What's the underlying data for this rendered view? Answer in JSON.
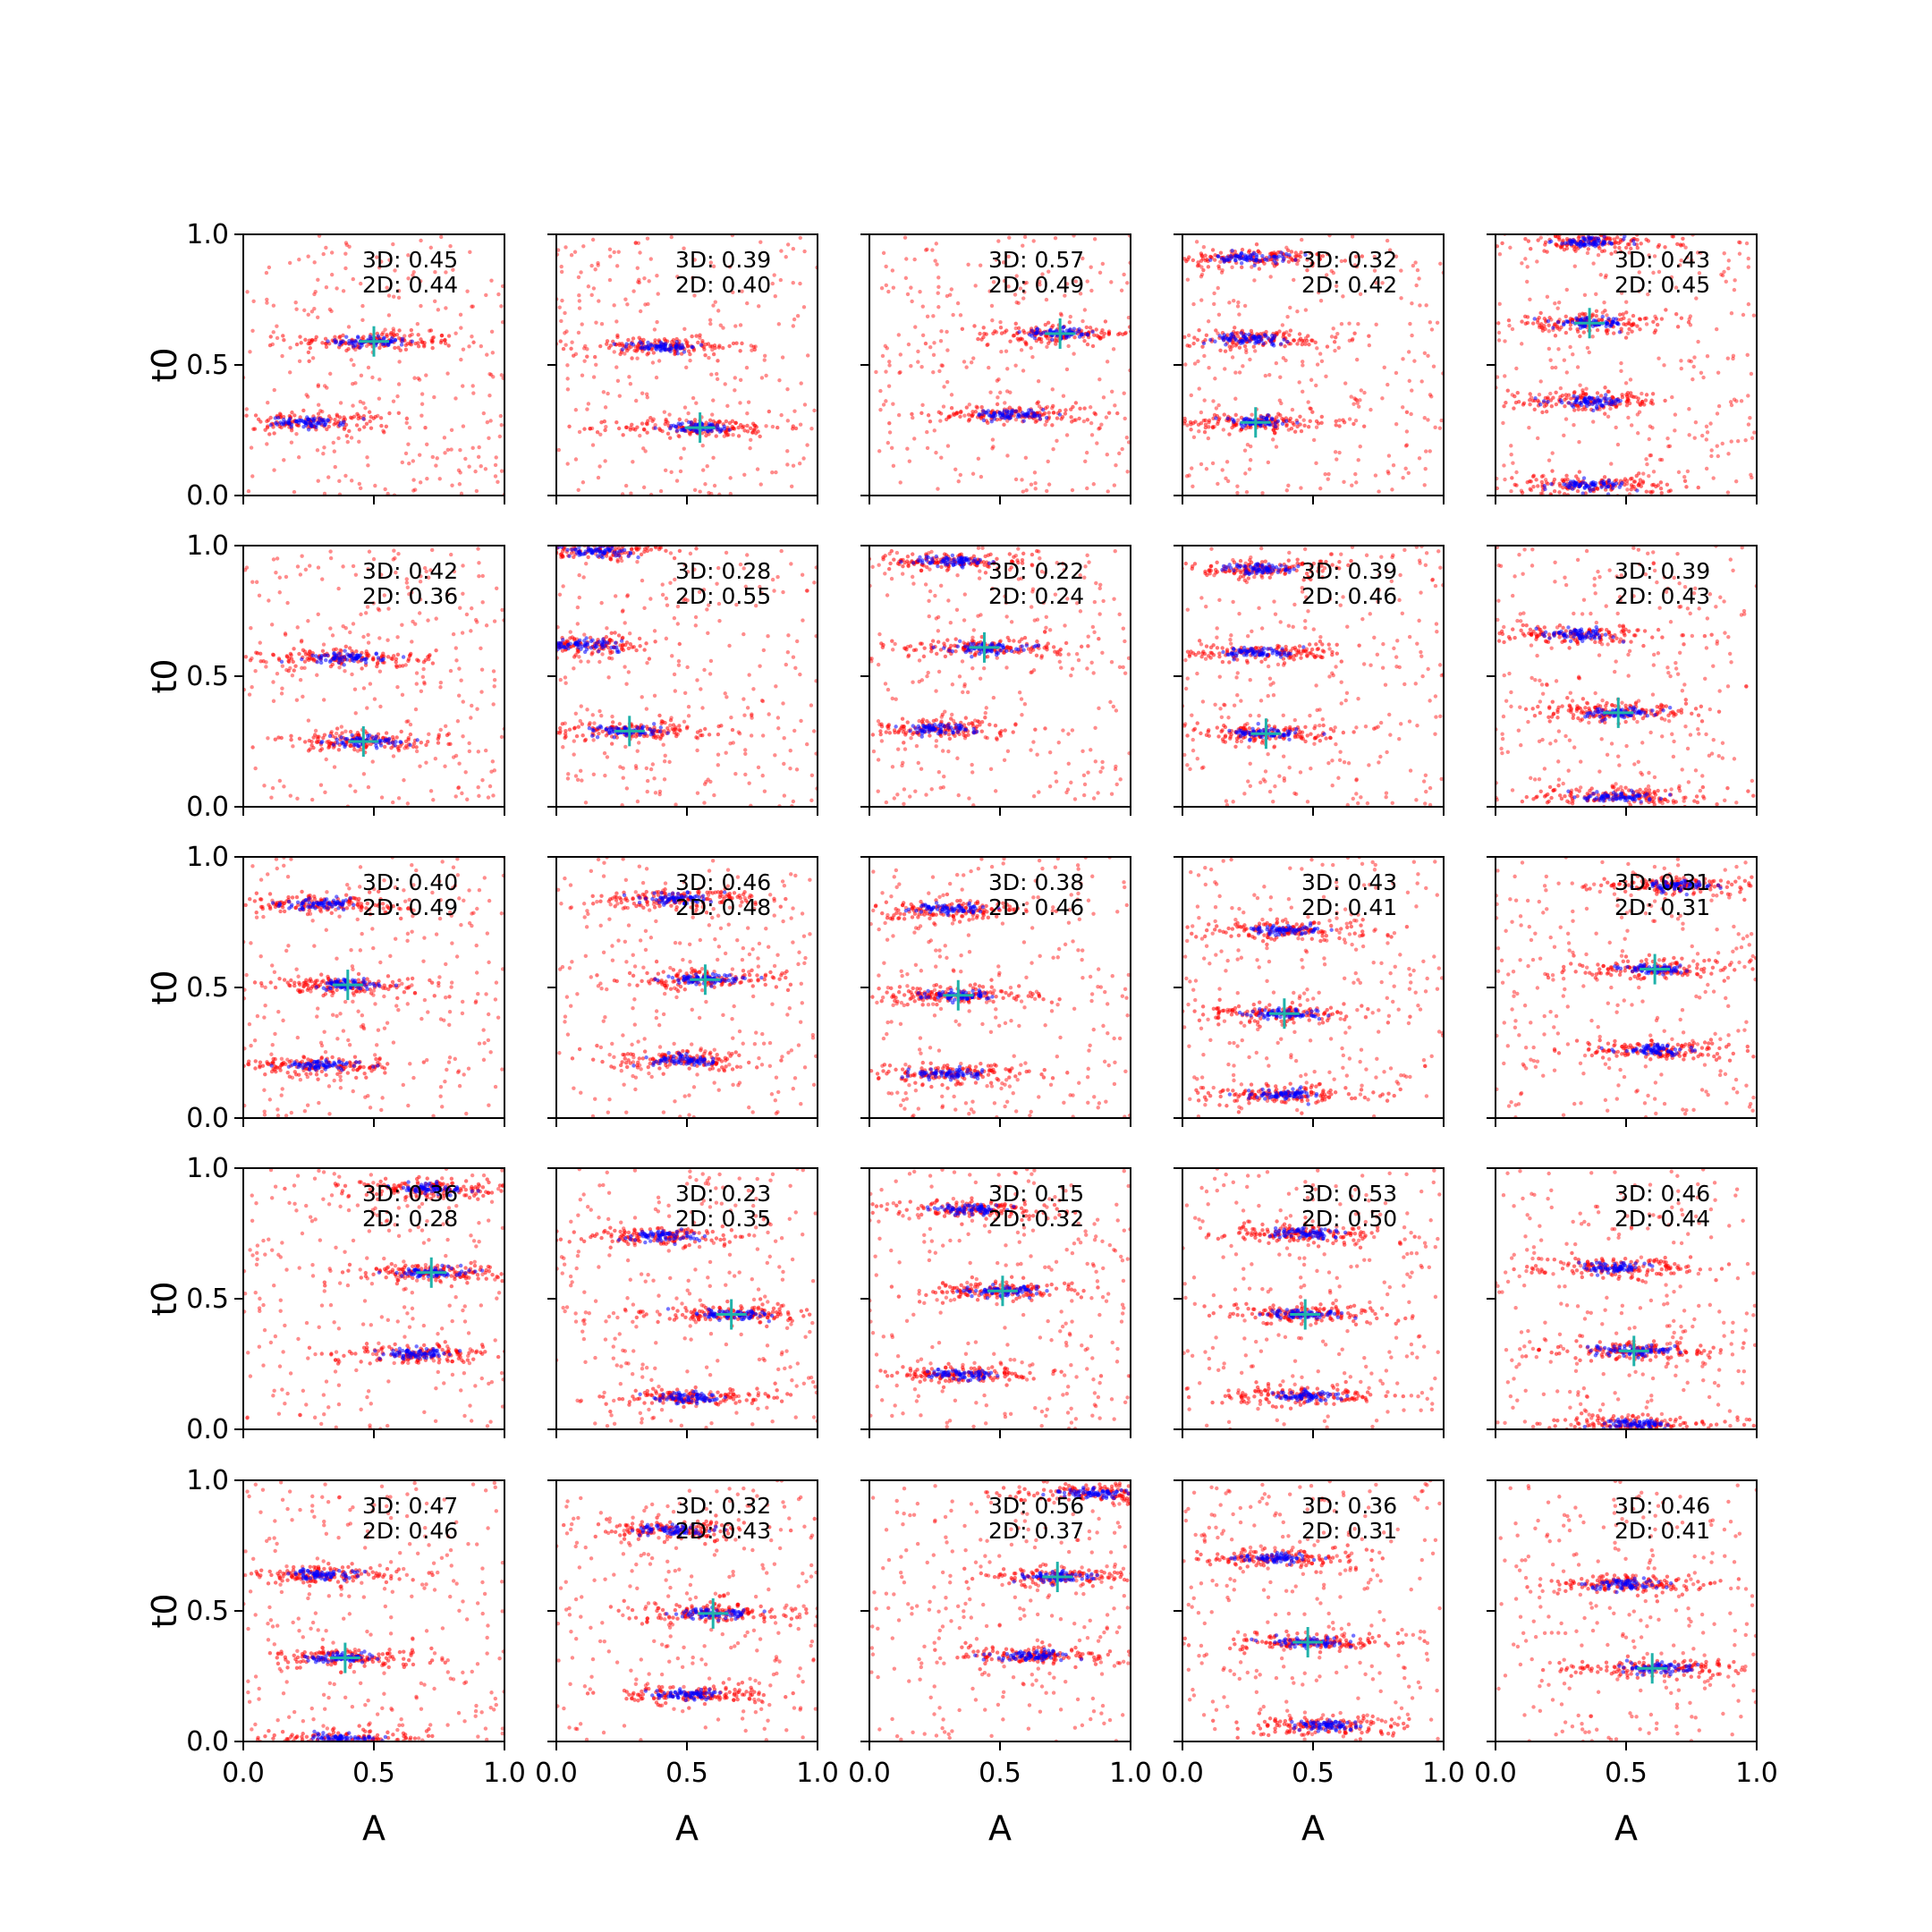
{
  "chart_data": {
    "type": "scatter",
    "grid": {
      "rows": 5,
      "cols": 5
    },
    "shared_axes": {
      "xlabel": "A",
      "ylabel": "t0",
      "xlim": [
        0,
        1
      ],
      "ylim": [
        0,
        1
      ],
      "xticks": [
        "0.0",
        "0.5",
        "1.0"
      ],
      "yticks": [
        "0.0",
        "0.5",
        "1.0"
      ]
    },
    "colors": {
      "outer": "#ff0000",
      "inner": "#0000ff",
      "truth": "#20b2aa"
    },
    "panels": [
      {
        "label3d": "3D: 0.45",
        "label2d": "2D: 0.44",
        "truth": [
          0.5,
          0.59
        ],
        "clusters": [
          [
            0.5,
            0.59
          ],
          [
            0.25,
            0.28
          ]
        ]
      },
      {
        "label3d": "3D: 0.39",
        "label2d": "2D: 0.40",
        "truth": [
          0.55,
          0.26
        ],
        "clusters": [
          [
            0.4,
            0.57
          ],
          [
            0.55,
            0.26
          ]
        ]
      },
      {
        "label3d": "3D: 0.57",
        "label2d": "2D: 0.49",
        "truth": [
          0.73,
          0.62
        ],
        "clusters": [
          [
            0.73,
            0.62
          ],
          [
            0.55,
            0.31
          ]
        ]
      },
      {
        "label3d": "3D: 0.32",
        "label2d": "2D: 0.42",
        "truth": [
          0.28,
          0.28
        ],
        "clusters": [
          [
            0.27,
            0.91
          ],
          [
            0.27,
            0.6
          ],
          [
            0.28,
            0.28
          ]
        ]
      },
      {
        "label3d": "3D: 0.43",
        "label2d": "2D: 0.45",
        "truth": [
          0.36,
          0.66
        ],
        "clusters": [
          [
            0.36,
            0.97
          ],
          [
            0.36,
            0.66
          ],
          [
            0.36,
            0.36
          ],
          [
            0.36,
            0.04
          ]
        ]
      },
      {
        "label3d": "3D: 0.42",
        "label2d": "2D: 0.36",
        "truth": [
          0.46,
          0.25
        ],
        "clusters": [
          [
            0.4,
            0.57
          ],
          [
            0.46,
            0.25
          ]
        ]
      },
      {
        "label3d": "3D: 0.28",
        "label2d": "2D: 0.55",
        "truth": [
          0.28,
          0.29
        ],
        "clusters": [
          [
            0.15,
            0.98
          ],
          [
            0.1,
            0.62
          ],
          [
            0.28,
            0.29
          ]
        ]
      },
      {
        "label3d": "3D: 0.22",
        "label2d": "2D: 0.24",
        "truth": [
          0.44,
          0.61
        ],
        "clusters": [
          [
            0.32,
            0.94
          ],
          [
            0.44,
            0.61
          ],
          [
            0.25,
            0.3
          ]
        ]
      },
      {
        "label3d": "3D: 0.39",
        "label2d": "2D: 0.46",
        "truth": [
          0.32,
          0.28
        ],
        "clusters": [
          [
            0.3,
            0.91
          ],
          [
            0.3,
            0.59
          ],
          [
            0.32,
            0.28
          ]
        ]
      },
      {
        "label3d": "3D: 0.39",
        "label2d": "2D: 0.43",
        "truth": [
          0.47,
          0.36
        ],
        "clusters": [
          [
            0.3,
            0.66
          ],
          [
            0.47,
            0.36
          ],
          [
            0.47,
            0.04
          ]
        ]
      },
      {
        "label3d": "3D: 0.40",
        "label2d": "2D: 0.49",
        "truth": [
          0.4,
          0.51
        ],
        "clusters": [
          [
            0.3,
            0.82
          ],
          [
            0.4,
            0.51
          ],
          [
            0.3,
            0.2
          ]
        ]
      },
      {
        "label3d": "3D: 0.46",
        "label2d": "2D: 0.48",
        "truth": [
          0.57,
          0.53
        ],
        "clusters": [
          [
            0.45,
            0.84
          ],
          [
            0.57,
            0.53
          ],
          [
            0.5,
            0.22
          ]
        ]
      },
      {
        "label3d": "3D: 0.38",
        "label2d": "2D: 0.46",
        "truth": [
          0.34,
          0.47
        ],
        "clusters": [
          [
            0.3,
            0.8
          ],
          [
            0.34,
            0.47
          ],
          [
            0.3,
            0.17
          ]
        ]
      },
      {
        "label3d": "3D: 0.43",
        "label2d": "2D: 0.41",
        "truth": [
          0.39,
          0.4
        ],
        "clusters": [
          [
            0.39,
            0.72
          ],
          [
            0.39,
            0.4
          ],
          [
            0.39,
            0.09
          ]
        ]
      },
      {
        "label3d": "3D: 0.31",
        "label2d": "2D: 0.31",
        "truth": [
          0.61,
          0.57
        ],
        "clusters": [
          [
            0.7,
            0.89
          ],
          [
            0.61,
            0.57
          ],
          [
            0.61,
            0.26
          ]
        ]
      },
      {
        "label3d": "3D: 0.36",
        "label2d": "2D: 0.28",
        "truth": [
          0.72,
          0.6
        ],
        "clusters": [
          [
            0.72,
            0.92
          ],
          [
            0.72,
            0.6
          ],
          [
            0.67,
            0.29
          ]
        ]
      },
      {
        "label3d": "3D: 0.23",
        "label2d": "2D: 0.35",
        "truth": [
          0.67,
          0.44
        ],
        "clusters": [
          [
            0.4,
            0.74
          ],
          [
            0.67,
            0.44
          ],
          [
            0.5,
            0.12
          ]
        ]
      },
      {
        "label3d": "3D: 0.15",
        "label2d": "2D: 0.32",
        "truth": [
          0.51,
          0.53
        ],
        "clusters": [
          [
            0.4,
            0.84
          ],
          [
            0.51,
            0.53
          ],
          [
            0.35,
            0.21
          ]
        ]
      },
      {
        "label3d": "3D: 0.53",
        "label2d": "2D: 0.50",
        "truth": [
          0.47,
          0.44
        ],
        "clusters": [
          [
            0.47,
            0.75
          ],
          [
            0.47,
            0.44
          ],
          [
            0.47,
            0.13
          ]
        ]
      },
      {
        "label3d": "3D: 0.46",
        "label2d": "2D: 0.44",
        "truth": [
          0.53,
          0.3
        ],
        "clusters": [
          [
            0.45,
            0.62
          ],
          [
            0.53,
            0.3
          ],
          [
            0.53,
            0.02
          ]
        ]
      },
      {
        "label3d": "3D: 0.47",
        "label2d": "2D: 0.46",
        "truth": [
          0.39,
          0.32
        ],
        "clusters": [
          [
            0.3,
            0.64
          ],
          [
            0.39,
            0.32
          ],
          [
            0.39,
            0.01
          ]
        ]
      },
      {
        "label3d": "3D: 0.32",
        "label2d": "2D: 0.43",
        "truth": [
          0.6,
          0.49
        ],
        "clusters": [
          [
            0.45,
            0.81
          ],
          [
            0.6,
            0.49
          ],
          [
            0.5,
            0.18
          ]
        ]
      },
      {
        "label3d": "3D: 0.56",
        "label2d": "2D: 0.37",
        "truth": [
          0.72,
          0.63
        ],
        "clusters": [
          [
            0.85,
            0.95
          ],
          [
            0.72,
            0.63
          ],
          [
            0.62,
            0.33
          ]
        ]
      },
      {
        "label3d": "3D: 0.36",
        "label2d": "2D: 0.31",
        "truth": [
          0.48,
          0.38
        ],
        "clusters": [
          [
            0.35,
            0.7
          ],
          [
            0.48,
            0.38
          ],
          [
            0.55,
            0.06
          ]
        ]
      },
      {
        "label3d": "3D: 0.46",
        "label2d": "2D: 0.41",
        "truth": [
          0.6,
          0.28
        ],
        "clusters": [
          [
            0.5,
            0.6
          ],
          [
            0.6,
            0.28
          ]
        ]
      }
    ]
  }
}
